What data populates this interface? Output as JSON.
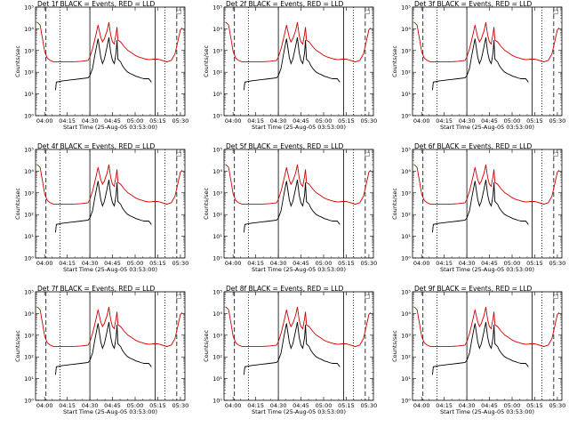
{
  "chart_data": {
    "type": "line",
    "figure_layout": "3x3 grid",
    "x_tick_labels": [
      "04:00",
      "04:15",
      "04:30",
      "04:45",
      "05:00",
      "05:15",
      "05:30"
    ],
    "x_ticks_hours": [
      4.0,
      4.25,
      4.5,
      4.75,
      5.0,
      5.25,
      5.5
    ],
    "xlim_hours": [
      3.9,
      5.55
    ],
    "xlabel": "Start Time (25-Aug-05 03:53:00)",
    "ylabel": "Counts/sec",
    "yscale": "log",
    "ylim": [
      1,
      100000
    ],
    "y_tick_exponents": [
      0,
      1,
      2,
      3,
      4,
      5
    ],
    "y_tick_base": "10",
    "dashed_vlines_hours": [
      4.015,
      5.46
    ],
    "dotted_vlines_hours": [
      4.17,
      5.33
    ],
    "solid_vlines_hours": [
      4.5,
      5.22
    ],
    "series": [
      {
        "name": "Events",
        "color": "#000000",
        "x": [
          4.12,
          4.13,
          4.2,
          4.3,
          4.4,
          4.48,
          4.5,
          4.53,
          4.56,
          4.59,
          4.62,
          4.64,
          4.66,
          4.69,
          4.71,
          4.73,
          4.75,
          4.77,
          4.79,
          4.8,
          4.81,
          4.84,
          4.86,
          4.88,
          4.9,
          4.92,
          4.95,
          4.98,
          5.01,
          5.04,
          5.06,
          5.1,
          5.15,
          5.18
        ],
        "y": [
          15,
          35,
          40,
          45,
          50,
          55,
          70,
          150,
          800,
          3500,
          500,
          250,
          400,
          1500,
          4000,
          800,
          350,
          250,
          800,
          3000,
          400,
          300,
          200,
          150,
          120,
          100,
          85,
          75,
          65,
          60,
          55,
          50,
          50,
          35
        ]
      },
      {
        "name": "LLD",
        "color": "#cc0000",
        "x": [
          3.92,
          3.95,
          3.98,
          4.0,
          4.03,
          4.06,
          4.1,
          4.2,
          4.3,
          4.4,
          4.48,
          4.5,
          4.53,
          4.56,
          4.59,
          4.62,
          4.64,
          4.66,
          4.69,
          4.71,
          4.73,
          4.75,
          4.77,
          4.79,
          4.8,
          4.81,
          4.84,
          4.88,
          4.92,
          4.96,
          5.0,
          5.04,
          5.08,
          5.12,
          5.16,
          5.2,
          5.25,
          5.3,
          5.35,
          5.4,
          5.44,
          5.47,
          5.5,
          5.52
        ],
        "y": [
          20000,
          15000,
          3000,
          900,
          450,
          350,
          300,
          300,
          300,
          320,
          350,
          500,
          1200,
          4000,
          15000,
          4000,
          2500,
          3500,
          8000,
          20000,
          5000,
          2500,
          2000,
          6000,
          12000,
          3000,
          2500,
          1500,
          1000,
          800,
          600,
          500,
          450,
          400,
          380,
          400,
          400,
          350,
          300,
          350,
          700,
          2500,
          9000,
          11000
        ]
      }
    ],
    "panels": [
      {
        "title": "Det 1f BLACK = Events, RED = LLD",
        "legend_mark": "□"
      },
      {
        "title": "Det 2f BLACK = Events, RED = LLD",
        "legend_mark": "□"
      },
      {
        "title": "Det 3f BLACK = Events, RED = LLD",
        "legend_mark": "□"
      },
      {
        "title": "Det 4f BLACK = Events, RED = LLD",
        "legend_mark": "□"
      },
      {
        "title": "Det 5f BLACK = Events, RED = LLD",
        "legend_mark": "□"
      },
      {
        "title": "Det 6f BLACK = Events, RED = LLD",
        "legend_mark": "□"
      },
      {
        "title": "Det 7f BLACK = Events, RED = LLD",
        "legend_mark": "□"
      },
      {
        "title": "Det 8f BLACK = Events, RED = LLD",
        "legend_mark": "□"
      },
      {
        "title": "Det 9f BLACK = Events, RED = LLD",
        "legend_mark": "□"
      }
    ]
  }
}
